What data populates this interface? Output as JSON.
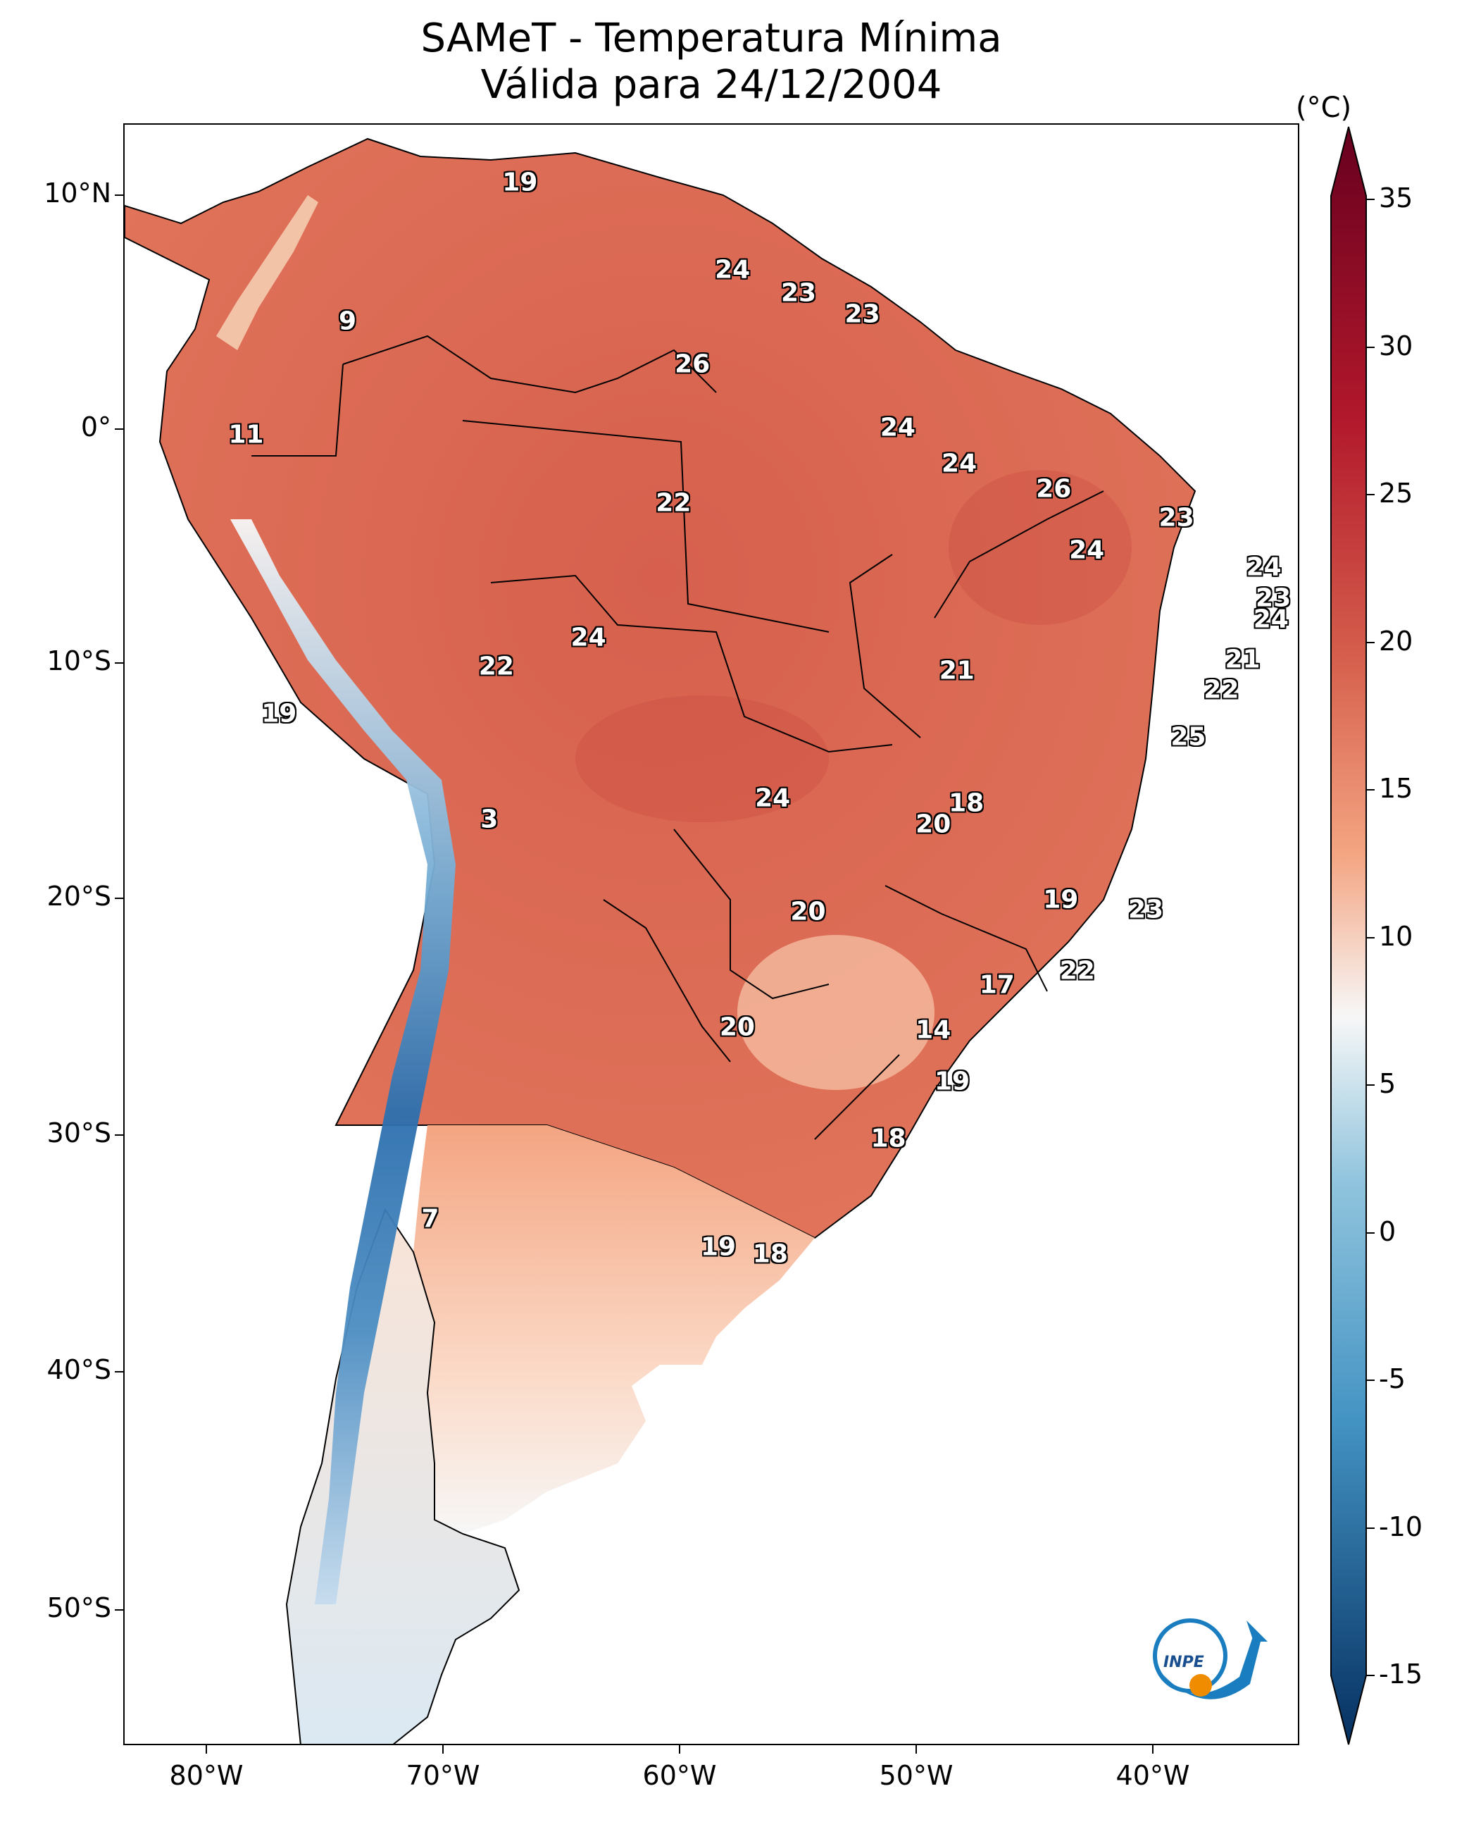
{
  "title": {
    "line1": "SAMeT - Temperatura Mínima",
    "line2": "Válida para 24/12/2004"
  },
  "axes": {
    "lat_ticks": [
      "10°N",
      "0°",
      "10°S",
      "20°S",
      "30°S",
      "40°S",
      "50°S"
    ],
    "lon_ticks": [
      "80°W",
      "70°W",
      "60°W",
      "50°W",
      "40°W"
    ]
  },
  "colorbar": {
    "unit": "(°C)",
    "ticks": [
      "35",
      "30",
      "25",
      "20",
      "15",
      "10",
      "5",
      "0",
      "-5",
      "-10",
      "-15"
    ],
    "colors": {
      "max": "#67001f",
      "hot": "#b2182b",
      "warm": "#d6604d",
      "mild": "#f4a582",
      "neutral": "#f7f7f7",
      "cool": "#92c5de",
      "cold": "#4393c3",
      "min": "#053061"
    }
  },
  "stations": [
    {
      "value": "19",
      "lon": -66.8,
      "lat": 10.5
    },
    {
      "value": "24",
      "lon": -57.8,
      "lat": 6.8
    },
    {
      "value": "23",
      "lon": -55.0,
      "lat": 5.8
    },
    {
      "value": "23",
      "lon": -52.3,
      "lat": 4.9
    },
    {
      "value": "9",
      "lon": -74.1,
      "lat": 4.6
    },
    {
      "value": "26",
      "lon": -59.5,
      "lat": 2.8
    },
    {
      "value": "11",
      "lon": -78.4,
      "lat": -0.2
    },
    {
      "value": "24",
      "lon": -50.8,
      "lat": 0.1
    },
    {
      "value": "24",
      "lon": -48.2,
      "lat": -1.4
    },
    {
      "value": "26",
      "lon": -44.2,
      "lat": -2.5
    },
    {
      "value": "22",
      "lon": -60.3,
      "lat": -3.1
    },
    {
      "value": "23",
      "lon": -39.0,
      "lat": -3.7
    },
    {
      "value": "24",
      "lon": -42.8,
      "lat": -5.1
    },
    {
      "value": "24",
      "lon": -35.3,
      "lat": -5.8
    },
    {
      "value": "23",
      "lon": -34.9,
      "lat": -7.1
    },
    {
      "value": "24",
      "lon": -35.0,
      "lat": -8.0
    },
    {
      "value": "24",
      "lon": -63.9,
      "lat": -8.8
    },
    {
      "value": "21",
      "lon": -48.3,
      "lat": -10.2
    },
    {
      "value": "22",
      "lon": -67.8,
      "lat": -10.0
    },
    {
      "value": "21",
      "lon": -36.2,
      "lat": -9.7
    },
    {
      "value": "22",
      "lon": -37.1,
      "lat": -11.0
    },
    {
      "value": "19",
      "lon": -77.0,
      "lat": -12.0
    },
    {
      "value": "25",
      "lon": -38.5,
      "lat": -13.0
    },
    {
      "value": "24",
      "lon": -56.1,
      "lat": -15.6
    },
    {
      "value": "18",
      "lon": -47.9,
      "lat": -15.8
    },
    {
      "value": "20",
      "lon": -49.3,
      "lat": -16.7
    },
    {
      "value": "3",
      "lon": -68.1,
      "lat": -16.5
    },
    {
      "value": "19",
      "lon": -43.9,
      "lat": -19.9
    },
    {
      "value": "23",
      "lon": -40.3,
      "lat": -20.3
    },
    {
      "value": "20",
      "lon": -54.6,
      "lat": -20.4
    },
    {
      "value": "22",
      "lon": -43.2,
      "lat": -22.9
    },
    {
      "value": "17",
      "lon": -46.6,
      "lat": -23.5
    },
    {
      "value": "20",
      "lon": -57.6,
      "lat": -25.3
    },
    {
      "value": "14",
      "lon": -49.3,
      "lat": -25.4
    },
    {
      "value": "19",
      "lon": -48.5,
      "lat": -27.6
    },
    {
      "value": "18",
      "lon": -51.2,
      "lat": -30.0
    },
    {
      "value": "7",
      "lon": -70.6,
      "lat": -33.4
    },
    {
      "value": "19",
      "lon": -58.4,
      "lat": -34.6
    },
    {
      "value": "18",
      "lon": -56.2,
      "lat": -34.9
    }
  ],
  "logo": {
    "text": "INPE"
  }
}
